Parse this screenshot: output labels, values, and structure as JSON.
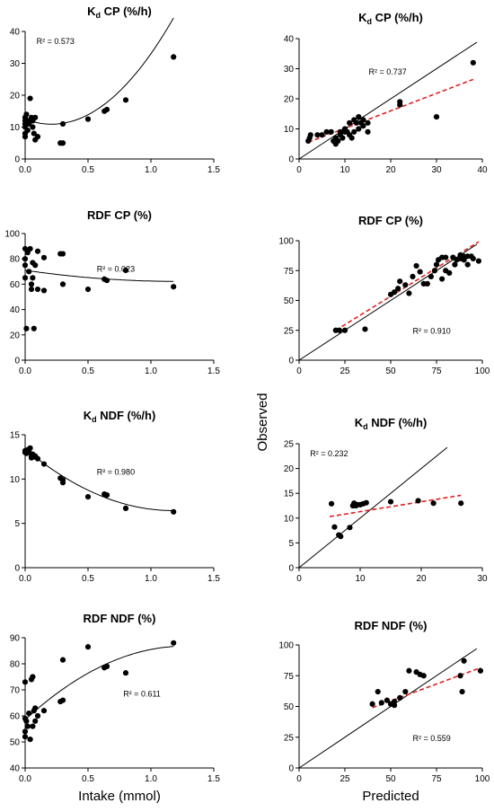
{
  "figure": {
    "xlabel_left": "Intake (mmol)",
    "xlabel_right": "Predicted",
    "ylabel_right": "Observed"
  },
  "chart_data": [
    {
      "type": "scatter",
      "title": "Kd CP (%/h)",
      "title_main": "K",
      "title_sub": "d",
      "title_rest": " CP (%/h)",
      "r2_text": "R² = 0.573",
      "r2_pos": "top-left",
      "xlim": [
        0,
        1.5
      ],
      "ylim": [
        0,
        40
      ],
      "xticks": [
        0,
        0.5,
        1.0,
        1.5
      ],
      "xtick_labels": [
        "0.0",
        "0.5",
        "1.0",
        "1.5"
      ],
      "yticks": [
        0,
        10,
        20,
        30,
        40
      ],
      "points": [
        [
          0,
          12
        ],
        [
          0,
          13
        ],
        [
          0,
          11
        ],
        [
          0,
          10
        ],
        [
          0,
          8
        ],
        [
          0,
          7
        ],
        [
          0.01,
          14
        ],
        [
          0.02,
          12
        ],
        [
          0.02,
          9
        ],
        [
          0.03,
          11
        ],
        [
          0.04,
          19
        ],
        [
          0.05,
          13
        ],
        [
          0.05,
          12
        ],
        [
          0.06,
          10
        ],
        [
          0.06,
          12
        ],
        [
          0.07,
          8
        ],
        [
          0.08,
          13
        ],
        [
          0.08,
          6
        ],
        [
          0.1,
          7
        ],
        [
          0.28,
          5
        ],
        [
          0.3,
          5
        ],
        [
          0.3,
          11
        ],
        [
          0.5,
          12.5
        ],
        [
          0.63,
          15
        ],
        [
          0.65,
          15.5
        ],
        [
          0.8,
          18.5
        ],
        [
          1.18,
          32
        ]
      ],
      "fit": {
        "kind": "quadratic",
        "coef": [
          12.5,
          -15,
          35.5
        ],
        "range": [
          0,
          1.18
        ],
        "color": "#000000",
        "dashed": false
      }
    },
    {
      "type": "scatter",
      "title": "Kd CP (%/h)",
      "title_main": "K",
      "title_sub": "d",
      "title_rest": " CP (%/h)",
      "r2_text": "R² = 0.737",
      "r2_pos": "top-center",
      "xlim": [
        0,
        40
      ],
      "ylim": [
        0,
        40
      ],
      "xticks": [
        0,
        10,
        20,
        30,
        40
      ],
      "yticks": [
        0,
        10,
        20,
        30,
        40
      ],
      "points": [
        [
          2,
          6
        ],
        [
          2.3,
          7
        ],
        [
          2.5,
          8
        ],
        [
          4,
          8
        ],
        [
          5,
          8
        ],
        [
          6,
          9
        ],
        [
          7,
          9
        ],
        [
          7.5,
          6
        ],
        [
          8,
          5
        ],
        [
          8,
          7
        ],
        [
          8.5,
          6
        ],
        [
          9,
          8
        ],
        [
          9,
          9
        ],
        [
          9.5,
          7
        ],
        [
          10,
          9
        ],
        [
          10,
          10
        ],
        [
          10.5,
          9
        ],
        [
          11,
          12
        ],
        [
          11,
          8
        ],
        [
          11.5,
          7
        ],
        [
          12,
          13
        ],
        [
          12,
          9
        ],
        [
          12.5,
          12
        ],
        [
          13,
          10
        ],
        [
          13,
          14
        ],
        [
          13.5,
          12
        ],
        [
          14,
          13
        ],
        [
          14,
          11
        ],
        [
          15,
          9
        ],
        [
          15,
          12
        ],
        [
          22,
          19
        ],
        [
          22,
          18
        ],
        [
          30,
          14
        ],
        [
          38,
          32
        ]
      ],
      "fit": {
        "kind": "linear",
        "coef": [
          4.4,
          0.58
        ],
        "range": [
          2,
          38
        ],
        "color": "#e02020",
        "dashed": true
      },
      "identity": true
    },
    {
      "type": "scatter",
      "title": "RDF CP (%)",
      "r2_text": "R² = 0.023",
      "r2_pos": "top-center",
      "xlim": [
        0,
        1.5
      ],
      "ylim": [
        0,
        100
      ],
      "xticks": [
        0,
        0.5,
        1.0,
        1.5
      ],
      "xtick_labels": [
        "0.0",
        "0.5",
        "1.0",
        "1.5"
      ],
      "yticks": [
        0,
        20,
        40,
        60,
        80,
        100
      ],
      "points": [
        [
          0,
          88
        ],
        [
          0,
          80
        ],
        [
          0,
          75
        ],
        [
          0,
          65
        ],
        [
          0.01,
          25
        ],
        [
          0.02,
          85
        ],
        [
          0.03,
          70
        ],
        [
          0.04,
          88
        ],
        [
          0.05,
          56
        ],
        [
          0.05,
          60
        ],
        [
          0.06,
          65
        ],
        [
          0.06,
          77
        ],
        [
          0.07,
          25
        ],
        [
          0.08,
          75
        ],
        [
          0.1,
          86
        ],
        [
          0.1,
          56
        ],
        [
          0.15,
          81
        ],
        [
          0.15,
          55
        ],
        [
          0.28,
          84
        ],
        [
          0.3,
          84
        ],
        [
          0.3,
          60
        ],
        [
          0.5,
          56
        ],
        [
          0.63,
          64
        ],
        [
          0.65,
          63
        ],
        [
          0.8,
          71
        ],
        [
          1.18,
          58
        ]
      ],
      "fit": {
        "kind": "quadratic",
        "coef": [
          71,
          -14.5,
          6
        ],
        "range": [
          0,
          1.18
        ],
        "color": "#000000",
        "dashed": false
      }
    },
    {
      "type": "scatter",
      "title": "RDF CP (%)",
      "r2_text": "R² = 0.910",
      "r2_pos": "bottom-right",
      "xlim": [
        0,
        100
      ],
      "ylim": [
        0,
        100
      ],
      "xticks": [
        0,
        25,
        50,
        75,
        100
      ],
      "yticks": [
        0,
        25,
        50,
        75,
        100
      ],
      "points": [
        [
          20,
          25
        ],
        [
          22,
          25
        ],
        [
          25,
          25
        ],
        [
          36,
          26
        ],
        [
          50,
          55
        ],
        [
          52,
          57
        ],
        [
          54,
          60
        ],
        [
          55,
          66
        ],
        [
          58,
          63
        ],
        [
          60,
          56
        ],
        [
          62,
          70
        ],
        [
          64,
          79
        ],
        [
          66,
          74
        ],
        [
          68,
          64
        ],
        [
          70,
          64
        ],
        [
          72,
          70
        ],
        [
          74,
          75
        ],
        [
          75,
          80
        ],
        [
          76,
          84
        ],
        [
          78,
          86
        ],
        [
          78,
          68
        ],
        [
          80,
          86
        ],
        [
          80,
          75
        ],
        [
          82,
          73
        ],
        [
          84,
          86
        ],
        [
          85,
          80
        ],
        [
          86,
          84
        ],
        [
          88,
          88
        ],
        [
          88,
          85
        ],
        [
          90,
          87
        ],
        [
          90,
          84
        ],
        [
          92,
          80
        ],
        [
          92,
          87
        ],
        [
          94,
          87
        ],
        [
          95,
          85
        ],
        [
          98,
          83
        ]
      ],
      "fit": {
        "kind": "linear",
        "coef": [
          6,
          0.95
        ],
        "range": [
          20,
          98
        ],
        "color": "#e02020",
        "dashed": true
      },
      "identity": true
    },
    {
      "type": "scatter",
      "title": "Kd NDF (%/h)",
      "title_main": "K",
      "title_sub": "d",
      "title_rest": " NDF (%/h)",
      "r2_text": "R² = 0.980",
      "r2_pos": "top-center",
      "xlim": [
        0,
        1.5
      ],
      "ylim": [
        0,
        15
      ],
      "xticks": [
        0,
        0.5,
        1.0,
        1.5
      ],
      "xtick_labels": [
        "0.0",
        "0.5",
        "1.0",
        "1.5"
      ],
      "yticks": [
        0,
        5,
        10,
        15
      ],
      "points": [
        [
          0,
          13.2
        ],
        [
          0,
          13
        ],
        [
          0.01,
          12.9
        ],
        [
          0.02,
          13.3
        ],
        [
          0.03,
          13.1
        ],
        [
          0.04,
          13.5
        ],
        [
          0.05,
          12.6
        ],
        [
          0.05,
          12.4
        ],
        [
          0.06,
          12.8
        ],
        [
          0.07,
          12.5
        ],
        [
          0.08,
          12.6
        ],
        [
          0.1,
          12.3
        ],
        [
          0.15,
          11.7
        ],
        [
          0.28,
          10.1
        ],
        [
          0.3,
          9.9
        ],
        [
          0.3,
          9.6
        ],
        [
          0.5,
          8.0
        ],
        [
          0.63,
          8.3
        ],
        [
          0.65,
          8.2
        ],
        [
          0.8,
          6.7
        ],
        [
          1.18,
          6.3
        ]
      ],
      "fit": {
        "kind": "quadratic",
        "coef": [
          13.4,
          -11.8,
          5.0
        ],
        "range": [
          0,
          1.18
        ],
        "color": "#000000",
        "dashed": false
      }
    },
    {
      "type": "scatter",
      "title": "Kd NDF (%/h)",
      "title_main": "K",
      "title_sub": "d",
      "title_rest": " NDF (%/h)",
      "r2_text": "R² = 0.232",
      "r2_pos": "top-left",
      "xlim": [
        0,
        30
      ],
      "ylim": [
        0,
        25
      ],
      "xticks": [
        0,
        10,
        20,
        30
      ],
      "yticks": [
        0,
        5,
        10,
        15,
        20,
        25
      ],
      "points": [
        [
          5.3,
          12.9
        ],
        [
          5.8,
          8.2
        ],
        [
          6.5,
          6.6
        ],
        [
          6.8,
          6.3
        ],
        [
          8.3,
          8.1
        ],
        [
          8.8,
          12.5
        ],
        [
          9,
          13
        ],
        [
          9.3,
          12.5
        ],
        [
          9.5,
          12.7
        ],
        [
          10,
          12.7
        ],
        [
          10.5,
          12.9
        ],
        [
          11,
          13.1
        ],
        [
          15,
          13.3
        ],
        [
          19.5,
          13.5
        ],
        [
          22,
          13
        ],
        [
          26.5,
          13
        ]
      ],
      "fit": {
        "kind": "linear",
        "coef": [
          9.3,
          0.2
        ],
        "range": [
          5,
          26.5
        ],
        "color": "#e02020",
        "dashed": true
      },
      "identity": true
    },
    {
      "type": "scatter",
      "title": "RDF NDF (%)",
      "r2_text": "R² = 0.611",
      "r2_pos": "middle-right",
      "xlim": [
        0,
        1.5
      ],
      "ylim": [
        40,
        90
      ],
      "xticks": [
        0,
        0.5,
        1.0,
        1.5
      ],
      "xtick_labels": [
        "0.0",
        "0.5",
        "1.0",
        "1.5"
      ],
      "yticks": [
        40,
        50,
        60,
        70,
        80,
        90
      ],
      "points": [
        [
          0,
          73
        ],
        [
          0,
          59
        ],
        [
          0,
          54
        ],
        [
          0,
          52
        ],
        [
          0.01,
          58
        ],
        [
          0.02,
          56
        ],
        [
          0.03,
          61
        ],
        [
          0.04,
          51
        ],
        [
          0.05,
          74
        ],
        [
          0.06,
          75
        ],
        [
          0.06,
          56
        ],
        [
          0.07,
          62
        ],
        [
          0.08,
          58
        ],
        [
          0.08,
          63
        ],
        [
          0.1,
          60
        ],
        [
          0.15,
          62
        ],
        [
          0.28,
          65.5
        ],
        [
          0.3,
          66
        ],
        [
          0.3,
          81.5
        ],
        [
          0.5,
          86.5
        ],
        [
          0.63,
          78.5
        ],
        [
          0.65,
          79
        ],
        [
          0.8,
          76.5
        ],
        [
          1.18,
          88
        ]
      ],
      "fit": {
        "kind": "quadratic",
        "coef": [
          58.5,
          44.5,
          -17.5
        ],
        "range": [
          0,
          1.18
        ],
        "color": "#000000",
        "dashed": false
      }
    },
    {
      "type": "scatter",
      "title": "RDF NDF (%)",
      "r2_text": "R² = 0.559",
      "r2_pos": "bottom-right",
      "xlim": [
        0,
        100
      ],
      "ylim": [
        0,
        100
      ],
      "xticks": [
        0,
        25,
        50,
        75,
        100
      ],
      "yticks": [
        0,
        25,
        50,
        75,
        100
      ],
      "points": [
        [
          40,
          52
        ],
        [
          43,
          62
        ],
        [
          45,
          53
        ],
        [
          48,
          55
        ],
        [
          50,
          52
        ],
        [
          52,
          51
        ],
        [
          52,
          54
        ],
        [
          55,
          57
        ],
        [
          58,
          62
        ],
        [
          60,
          79
        ],
        [
          64,
          78
        ],
        [
          66,
          76
        ],
        [
          68,
          75
        ],
        [
          88,
          75
        ],
        [
          89,
          62
        ],
        [
          90,
          87
        ],
        [
          99,
          79
        ]
      ],
      "fit": {
        "kind": "linear",
        "coef": [
          27,
          0.55
        ],
        "range": [
          40,
          99
        ],
        "color": "#e02020",
        "dashed": true
      },
      "identity": true
    }
  ]
}
